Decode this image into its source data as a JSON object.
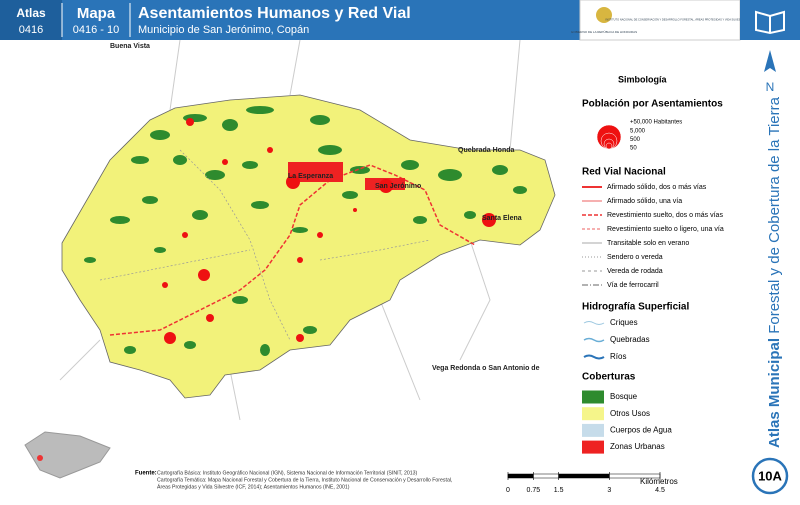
{
  "header": {
    "atlas_label": "Atlas",
    "atlas_code": "0416",
    "map_label": "Mapa",
    "map_code": "0416 - 10",
    "title": "Asentamientos Humanos y Red Vial",
    "subtitle": "Municipio de San Jerónimo, Copán",
    "logo_left": "GOBIERNO DE LA REPÚBLICA DE HONDURAS",
    "logo_right": "INSTITUTO NACIONAL DE CONSERVACIÓN Y DESARROLLO FORESTAL, ÁREAS PROTEGIDAS Y VIDA SILVESTRE ICF"
  },
  "places": [
    "Buena Vista",
    "Quebrada Honda",
    "Santa Elena",
    "La Esperanza",
    "San Jerónimo",
    "Vega Redonda o San Antonio de"
  ],
  "legend": {
    "title": "Simbología",
    "population": {
      "title": "Población por Asentamientos",
      "items": [
        "+50,000 Habitantes",
        "5,000",
        "500",
        "50"
      ]
    },
    "roads": {
      "title": "Red Vial Nacional",
      "items": [
        "Afirmado sólido, dos o más vías",
        "Afirmado sólido, una vía",
        "Revestimiento suelto, dos o más vías",
        "Revestimiento suelto o ligero, una vía",
        "Transitable solo en verano",
        "Sendero o vereda",
        "Vereda de rodada",
        "Vía de ferrocarril"
      ]
    },
    "hydro": {
      "title": "Hidrografía Superficial",
      "items": [
        "Criques",
        "Quebradas",
        "Ríos"
      ]
    },
    "cover": {
      "title": "Coberturas",
      "items": [
        {
          "label": "Bosque",
          "color": "#2e8b2e"
        },
        {
          "label": "Otros Usos",
          "color": "#f5f58a"
        },
        {
          "label": "Cuerpos de Agua",
          "color": "#c6dcea"
        },
        {
          "label": "Zonas Urbanas",
          "color": "#ee2222"
        }
      ]
    }
  },
  "scale": {
    "unit": "Kilómetros",
    "ticks": [
      0,
      0.75,
      1.5,
      3,
      4.5
    ]
  },
  "side": {
    "title_bold": "Atlas Municipal",
    "title_rest": "Forestal y de Cobertura de la Tierra",
    "north": "N",
    "sheet": "10A"
  },
  "source": {
    "label": "Fuente:",
    "lines": [
      "Cartografía Básica: Instituto Geográfico Nacional (IGN), Sistema Nacional de Información Territorial (SINIT, 2013)",
      "Cartografía Temática: Mapa Nacional Forestal y Cobertura de la Tierra, Instituto Nacional de Conservación y Desarrollo Forestal,",
      "Áreas Protegidas y Vida Silvestre (ICF, 2014); Asentamientos Humanos (INE, 2001)"
    ]
  }
}
